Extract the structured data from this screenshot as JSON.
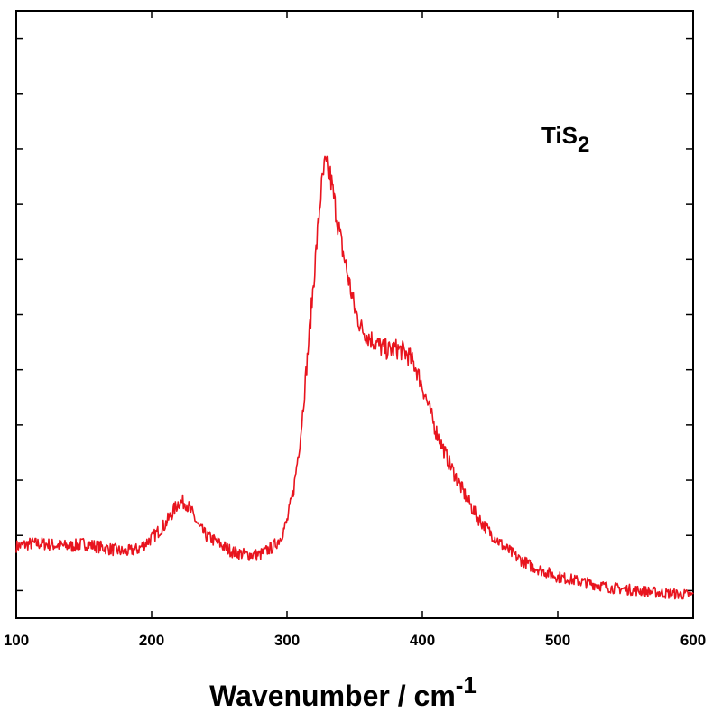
{
  "chart_data": {
    "type": "line",
    "title": "",
    "xlabel": {
      "text": "Wavenumber  /  cm",
      "superscript": "-1"
    },
    "ylabel": "",
    "xlim": [
      100,
      600
    ],
    "ylim": [
      0,
      11
    ],
    "x_ticks": [
      100,
      200,
      300,
      400,
      500,
      600
    ],
    "y_ticks": [
      0.5,
      1.5,
      2.5,
      3.5,
      4.5,
      5.5,
      6.5,
      7.5,
      8.5,
      9.5,
      10.5
    ],
    "grid": false,
    "annotation": {
      "base": "TiS",
      "subscript": "2",
      "x": 488,
      "y": 8.6
    },
    "series": [
      {
        "name": "TiS2",
        "color": "#e8141e",
        "x": [
          100,
          110,
          120,
          130,
          140,
          150,
          160,
          170,
          180,
          190,
          200,
          210,
          215,
          220,
          225,
          230,
          235,
          240,
          250,
          260,
          270,
          280,
          290,
          295,
          300,
          305,
          310,
          315,
          320,
          325,
          328,
          332,
          336,
          340,
          345,
          350,
          355,
          360,
          365,
          370,
          375,
          380,
          385,
          390,
          395,
          400,
          405,
          410,
          420,
          430,
          440,
          450,
          460,
          470,
          480,
          490,
          500,
          520,
          540,
          560,
          580,
          600
        ],
        "y": [
          1.3,
          1.35,
          1.35,
          1.32,
          1.3,
          1.35,
          1.3,
          1.25,
          1.2,
          1.25,
          1.45,
          1.7,
          1.9,
          2.1,
          2.1,
          1.9,
          1.65,
          1.5,
          1.35,
          1.2,
          1.15,
          1.15,
          1.3,
          1.45,
          1.75,
          2.35,
          3.3,
          4.7,
          6.2,
          7.7,
          8.2,
          8.0,
          7.4,
          6.8,
          6.2,
          5.6,
          5.25,
          5.1,
          5.0,
          4.9,
          4.85,
          4.88,
          4.85,
          4.75,
          4.55,
          4.2,
          3.8,
          3.4,
          2.8,
          2.3,
          1.85,
          1.55,
          1.3,
          1.1,
          0.95,
          0.85,
          0.75,
          0.65,
          0.55,
          0.5,
          0.45,
          0.42
        ]
      }
    ]
  }
}
